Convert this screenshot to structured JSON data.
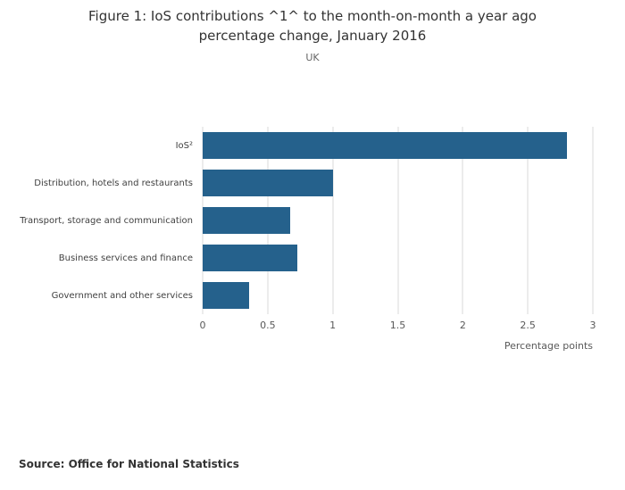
{
  "title": "Figure 1: IoS contributions ^1^ to the month-on-month a year ago percentage change, January 2016",
  "subtitle": "UK",
  "source": "Source: Office for National Statistics",
  "colors": {
    "bar": "#25618C",
    "grid": "#d9d9d9",
    "title": "#333333",
    "text": "#595959"
  },
  "chart_data": {
    "type": "bar",
    "orientation": "horizontal",
    "title": "Figure 1: IoS contributions ^1^ to the month-on-month a year ago percentage change, January 2016",
    "subtitle": "UK",
    "categories": [
      "IoS²",
      "Distribution, hotels and restaurants",
      "Transport, storage and communication",
      "Business services and finance",
      "Government and other services"
    ],
    "values": [
      2.8,
      1.0,
      0.67,
      0.73,
      0.36
    ],
    "xlabel": "Percentage points",
    "ylabel": "",
    "xlim": [
      0,
      3
    ],
    "xticks": [
      0,
      0.5,
      1,
      1.5,
      2,
      2.5,
      3
    ],
    "tick_labels": [
      "0",
      "0.5",
      "1",
      "1.5",
      "2",
      "2.5",
      "3"
    ],
    "grid": true,
    "legend": false
  }
}
